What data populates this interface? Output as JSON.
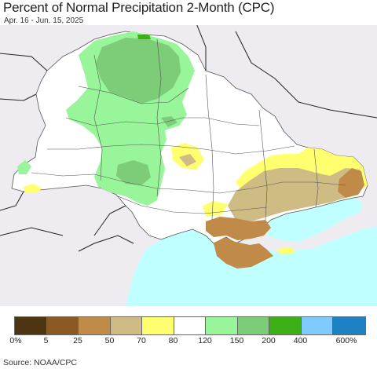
{
  "title": "Percent of Normal Precipitation 2-Month (CPC)",
  "subtitle": "Apr. 16 - Jun. 15, 2025",
  "source": "Source: NOAA/CPC",
  "legend": {
    "colors": [
      "#4d3512",
      "#8b5a24",
      "#c08a48",
      "#cfbb84",
      "#ffff70",
      "#ffffff",
      "#99f599",
      "#7ccc78",
      "#3db018",
      "#7fcaff",
      "#1c82c4"
    ],
    "labels": [
      "0%",
      "5",
      "25",
      "50",
      "70",
      "80",
      "120",
      "150",
      "200",
      "400",
      "600%"
    ]
  },
  "map": {
    "background_color": "#eeecf0",
    "sea_color": "#bfffff",
    "region": "Ukraine"
  }
}
